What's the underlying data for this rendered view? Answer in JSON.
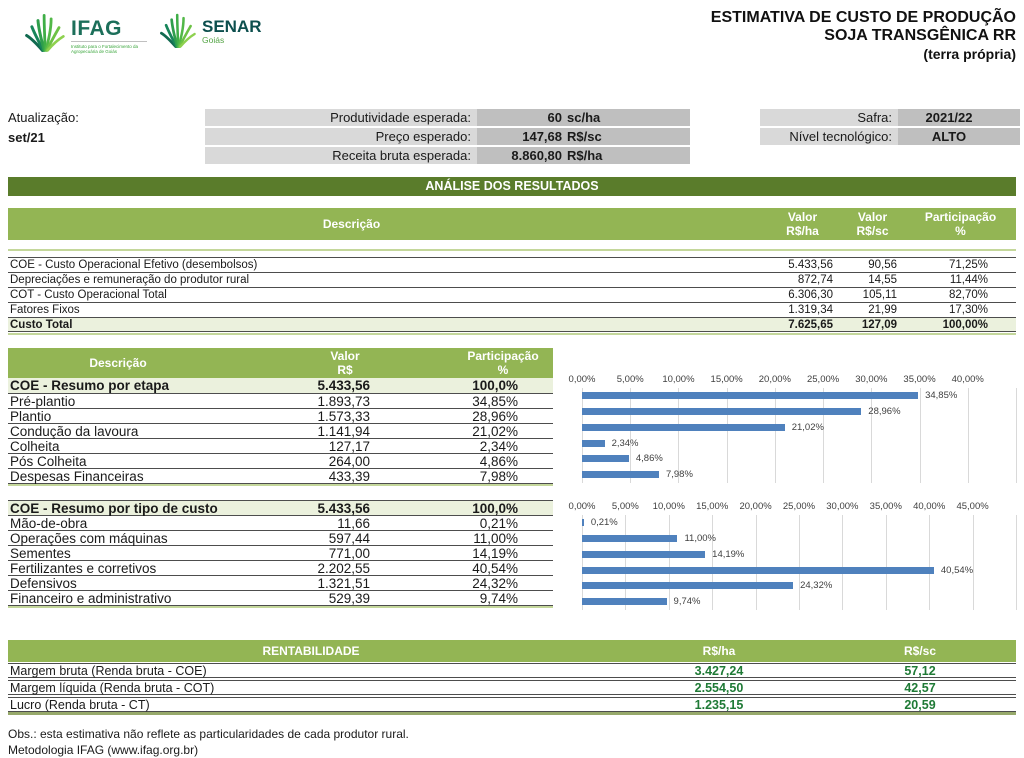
{
  "header": {
    "logos": {
      "ifag": {
        "name": "IFAG",
        "subtitle": "Instituto para o Fortalecimento da Agropecuária de Goiás"
      },
      "senar": {
        "name": "SENAR",
        "subtitle": "Goiás"
      }
    },
    "title_lines": [
      "ESTIMATIVA DE CUSTO DE PRODUÇÃO",
      "SOJA TRANSGÊNICA RR",
      "(terra própria)"
    ]
  },
  "info": {
    "atualizacao_label": "Atualização:",
    "atualizacao_value": "set/21",
    "expected": [
      {
        "label": "Produtividade esperada:",
        "value": "60",
        "unit": "sc/ha"
      },
      {
        "label": "Preço esperado:",
        "value": "147,68",
        "unit": "R$/sc"
      },
      {
        "label": "Receita bruta esperada:",
        "value": "8.860,80",
        "unit": "R$/ha"
      }
    ],
    "right": [
      {
        "label": "Safra:",
        "value": "2021/22"
      },
      {
        "label": "Nível tecnológico:",
        "value": "ALTO"
      }
    ]
  },
  "banner": "ANÁLISE DOS RESULTADOS",
  "results_table": {
    "header": {
      "desc": "Descrição",
      "valor_ha": [
        "Valor",
        "R$/ha"
      ],
      "valor_sc": [
        "Valor",
        "R$/sc"
      ],
      "part": [
        "Participação",
        "%"
      ]
    },
    "rows": [
      [
        "COE - Custo Operacional Efetivo (desembolsos)",
        "5.433,56",
        "90,56",
        "71,25%"
      ],
      [
        "Depreciações e remuneração do produtor rural",
        "872,74",
        "14,55",
        "11,44%"
      ],
      [
        "COT - Custo Operacional Total",
        "6.306,30",
        "105,11",
        "82,70%"
      ],
      [
        "Fatores Fixos",
        "1.319,34",
        "21,99",
        "17,30%"
      ]
    ],
    "total_row": [
      "Custo Total",
      "7.625,65",
      "127,09",
      "100,00%"
    ]
  },
  "etapa_table": {
    "header": {
      "desc": "Descrição",
      "valor": [
        "Valor",
        "R$"
      ],
      "part": [
        "Participação",
        "%"
      ]
    },
    "summary": [
      "COE - Resumo por etapa",
      "5.433,56",
      "100,0%"
    ],
    "rows": [
      [
        "Pré-plantio",
        "1.893,73",
        "34,85%"
      ],
      [
        "Plantio",
        "1.573,33",
        "28,96%"
      ],
      [
        "Condução da lavoura",
        "1.141,94",
        "21,02%"
      ],
      [
        "Colheita",
        "127,17",
        "2,34%"
      ],
      [
        "Pós Colheita",
        "264,00",
        "4,86%"
      ],
      [
        "Despesas Financeiras",
        "433,39",
        "7,98%"
      ]
    ]
  },
  "tipo_table": {
    "summary": [
      "COE - Resumo por tipo de custo",
      "5.433,56",
      "100,0%"
    ],
    "rows": [
      [
        "Mão-de-obra",
        "11,66",
        "0,21%"
      ],
      [
        "Operações com máquinas",
        "597,44",
        "11,00%"
      ],
      [
        "Sementes",
        "771,00",
        "14,19%"
      ],
      [
        "Fertilizantes e corretivos",
        "2.202,55",
        "40,54%"
      ],
      [
        "Defensivos",
        "1.321,51",
        "24,32%"
      ],
      [
        "Financeiro e administrativo",
        "529,39",
        "9,74%"
      ]
    ]
  },
  "chart_data": [
    {
      "type": "bar",
      "orientation": "horizontal",
      "categories": [
        "Pré-plantio",
        "Plantio",
        "Condução da lavoura",
        "Colheita",
        "Pós Colheita",
        "Despesas Financeiras"
      ],
      "values": [
        34.85,
        28.96,
        21.02,
        2.34,
        4.86,
        7.98
      ],
      "labels": [
        "34,85%",
        "28,96%",
        "21,02%",
        "2,34%",
        "4,86%",
        "7,98%"
      ],
      "tick_values": [
        0,
        5,
        10,
        15,
        20,
        25,
        30,
        35,
        40
      ],
      "ticks": [
        "0,00%",
        "5,00%",
        "10,00%",
        "15,00%",
        "20,00%",
        "25,00%",
        "30,00%",
        "35,00%",
        "40,00%"
      ],
      "xlim": [
        0,
        45
      ],
      "bar_color": "#4f81bd",
      "grid": true,
      "legend": false,
      "title": ""
    },
    {
      "type": "bar",
      "orientation": "horizontal",
      "categories": [
        "Mão-de-obra",
        "Operações com máquinas",
        "Sementes",
        "Fertilizantes e corretivos",
        "Defensivos",
        "Financeiro e administrativo"
      ],
      "values": [
        0.21,
        11.0,
        14.19,
        40.54,
        24.32,
        9.74
      ],
      "labels": [
        "0,21%",
        "11,00%",
        "14,19%",
        "40,54%",
        "24,32%",
        "9,74%"
      ],
      "tick_values": [
        0,
        5,
        10,
        15,
        20,
        25,
        30,
        35,
        40,
        45
      ],
      "ticks": [
        "0,00%",
        "5,00%",
        "10,00%",
        "15,00%",
        "20,00%",
        "25,00%",
        "30,00%",
        "35,00%",
        "40,00%",
        "45,00%"
      ],
      "xlim": [
        0,
        50
      ],
      "bar_color": "#4f81bd",
      "grid": true,
      "legend": false,
      "title": ""
    }
  ],
  "rent_table": {
    "header": {
      "desc": "RENTABILIDADE",
      "col1": "R$/ha",
      "col2": "R$/sc"
    },
    "rows": [
      [
        "Margem bruta (Renda bruta - COE)",
        "3.427,24",
        "57,12"
      ],
      [
        "Margem líquida (Renda bruta - COT)",
        "2.554,50",
        "42,57"
      ],
      [
        "Lucro (Renda bruta - CT)",
        "1.235,15",
        "20,59"
      ]
    ]
  },
  "footer": {
    "obs": "Obs.: esta estimativa não reflete as particularidades de cada produtor rural.",
    "metodologia": "Metodologia IFAG (www.ifag.org.br)"
  }
}
